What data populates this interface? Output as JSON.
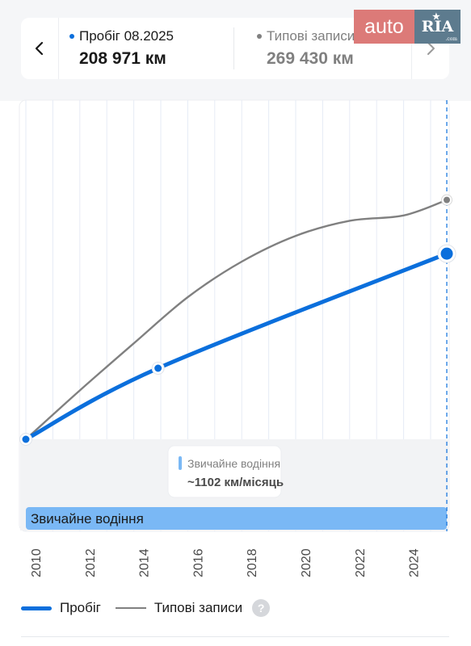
{
  "header": {
    "mileage_label": "Пробіг 08.2025",
    "mileage_value": "208 971 км",
    "typical_label": "Типові записи",
    "typical_value": "269 430 км",
    "back_icon": "chevron-left-icon",
    "forward_icon": "chevron-right-icon"
  },
  "logo": {
    "auto": "auto",
    "ria": "RIA",
    "com": ".com"
  },
  "colors": {
    "mileage": "#0b6fdc",
    "typical": "#808080",
    "band": "#7ab8f5",
    "tooltip_marker": "#7ab8f5",
    "accent_logo_auto": "#dc7a78",
    "accent_logo_ria": "#5d7b8e"
  },
  "chart_data": {
    "type": "line",
    "x_ticks": [
      "2010",
      "2012",
      "2014",
      "2016",
      "2018",
      "2020",
      "2022",
      "2024"
    ],
    "xlim": [
      2010,
      2025.6
    ],
    "ylim": [
      0,
      300000
    ],
    "grid": true,
    "series": [
      {
        "name": "Пробіг",
        "points": [
          [
            2010,
            0
          ],
          [
            2014.9,
            80000
          ],
          [
            2025.6,
            208971
          ]
        ],
        "markers": [
          [
            2010,
            0
          ],
          [
            2014.9,
            80000
          ],
          [
            2025.6,
            208971
          ]
        ]
      },
      {
        "name": "Типові записи",
        "points": [
          [
            2010,
            0
          ],
          [
            2012,
            55000
          ],
          [
            2014,
            108000
          ],
          [
            2016,
            160000
          ],
          [
            2018,
            200000
          ],
          [
            2020,
            229000
          ],
          [
            2022,
            246000
          ],
          [
            2024,
            252000
          ],
          [
            2025.6,
            269430
          ]
        ],
        "markers": [
          [
            2025.6,
            269430
          ]
        ]
      }
    ],
    "band": {
      "label": "Звичайне водіння",
      "from": 2010,
      "to": 2025.6
    },
    "tooltip": {
      "title": "Звичайне водіння",
      "value": "~1102 км/місяць"
    },
    "legend_position": "bottom-left"
  },
  "legend": {
    "mileage": "Пробіг",
    "typical": "Типові записи",
    "help": "?"
  }
}
